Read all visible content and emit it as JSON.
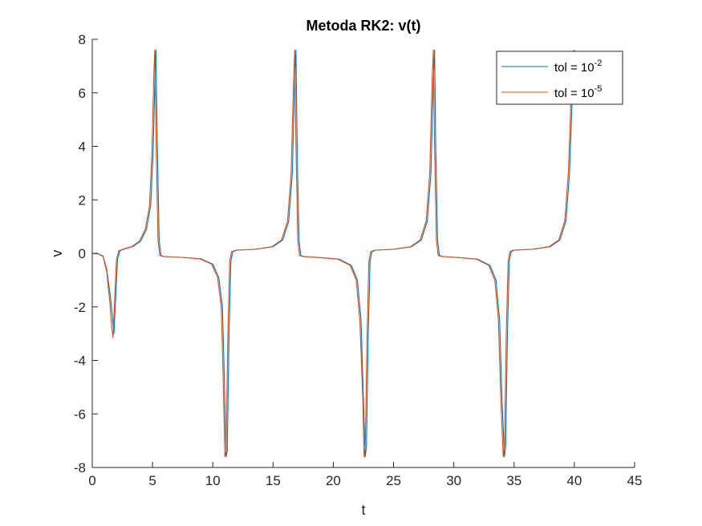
{
  "chart_data": {
    "type": "line",
    "title": "Metoda RK2: v(t)",
    "xlabel": "t",
    "ylabel": "v",
    "xlim": [
      0,
      45
    ],
    "ylim": [
      -8,
      8
    ],
    "xticks": [
      0,
      5,
      10,
      15,
      20,
      25,
      30,
      35,
      40,
      45
    ],
    "yticks": [
      -8,
      -6,
      -4,
      -2,
      0,
      2,
      4,
      6,
      8
    ],
    "grid": false,
    "legend_position": "top-right",
    "series": [
      {
        "name": "tol = 10^-2",
        "legend_base": "tol = 10",
        "legend_exp": "-2",
        "color": "#0072BD",
        "points": [
          [
            0,
            0
          ],
          [
            0.5,
            -0.01
          ],
          [
            0.9,
            -0.1
          ],
          [
            1.2,
            -0.6
          ],
          [
            1.5,
            -1.6
          ],
          [
            1.7,
            -2.5
          ],
          [
            1.8,
            -3.0
          ],
          [
            1.95,
            -1.6
          ],
          [
            2.1,
            -0.2
          ],
          [
            2.3,
            0.1
          ],
          [
            2.8,
            0.18
          ],
          [
            3.4,
            0.26
          ],
          [
            4.0,
            0.45
          ],
          [
            4.5,
            0.9
          ],
          [
            4.85,
            1.8
          ],
          [
            5.05,
            3.8
          ],
          [
            5.2,
            6.6
          ],
          [
            5.28,
            7.6
          ],
          [
            5.4,
            4.0
          ],
          [
            5.55,
            0.5
          ],
          [
            5.7,
            -0.08
          ],
          [
            6.0,
            -0.12
          ],
          [
            7.5,
            -0.15
          ],
          [
            9.0,
            -0.2
          ],
          [
            10.0,
            -0.4
          ],
          [
            10.5,
            -0.9
          ],
          [
            10.8,
            -2.0
          ],
          [
            10.95,
            -4.5
          ],
          [
            11.1,
            -7.6
          ],
          [
            11.2,
            -7.4
          ],
          [
            11.35,
            -3.0
          ],
          [
            11.5,
            -0.3
          ],
          [
            11.65,
            0.06
          ],
          [
            12.0,
            0.12
          ],
          [
            13.5,
            0.15
          ],
          [
            15.0,
            0.25
          ],
          [
            15.8,
            0.5
          ],
          [
            16.3,
            1.2
          ],
          [
            16.6,
            3.0
          ],
          [
            16.8,
            6.5
          ],
          [
            16.9,
            7.6
          ],
          [
            17.0,
            4.0
          ],
          [
            17.15,
            0.5
          ],
          [
            17.3,
            -0.08
          ],
          [
            17.6,
            -0.12
          ],
          [
            19.0,
            -0.16
          ],
          [
            20.5,
            -0.22
          ],
          [
            21.5,
            -0.45
          ],
          [
            22.0,
            -1.0
          ],
          [
            22.3,
            -2.5
          ],
          [
            22.5,
            -5.5
          ],
          [
            22.65,
            -7.6
          ],
          [
            22.75,
            -7.2
          ],
          [
            22.9,
            -3.0
          ],
          [
            23.05,
            -0.3
          ],
          [
            23.2,
            0.06
          ],
          [
            23.5,
            0.12
          ],
          [
            25.0,
            0.15
          ],
          [
            26.5,
            0.25
          ],
          [
            27.3,
            0.5
          ],
          [
            27.8,
            1.2
          ],
          [
            28.1,
            3.0
          ],
          [
            28.3,
            6.5
          ],
          [
            28.4,
            7.6
          ],
          [
            28.5,
            4.0
          ],
          [
            28.65,
            0.5
          ],
          [
            28.8,
            -0.08
          ],
          [
            29.1,
            -0.12
          ],
          [
            30.5,
            -0.16
          ],
          [
            32.0,
            -0.22
          ],
          [
            33.0,
            -0.45
          ],
          [
            33.5,
            -1.0
          ],
          [
            33.8,
            -2.5
          ],
          [
            34.0,
            -5.5
          ],
          [
            34.2,
            -7.6
          ],
          [
            34.3,
            -7.2
          ],
          [
            34.45,
            -3.0
          ],
          [
            34.6,
            -0.3
          ],
          [
            34.75,
            0.06
          ],
          [
            35.0,
            0.12
          ],
          [
            36.5,
            0.15
          ],
          [
            38.0,
            0.25
          ],
          [
            38.8,
            0.5
          ],
          [
            39.3,
            1.2
          ],
          [
            39.6,
            3.0
          ],
          [
            39.8,
            5.5
          ],
          [
            40.0,
            7.6
          ]
        ]
      },
      {
        "name": "tol = 10^-5",
        "legend_base": "tol = 10",
        "legend_exp": "-5",
        "color": "#D95319",
        "points": [
          [
            0,
            0
          ],
          [
            0.5,
            -0.02
          ],
          [
            0.9,
            -0.12
          ],
          [
            1.2,
            -0.7
          ],
          [
            1.45,
            -1.8
          ],
          [
            1.6,
            -2.7
          ],
          [
            1.72,
            -3.15
          ],
          [
            1.85,
            -1.8
          ],
          [
            2.0,
            -0.25
          ],
          [
            2.2,
            0.1
          ],
          [
            2.7,
            0.18
          ],
          [
            3.3,
            0.26
          ],
          [
            3.9,
            0.45
          ],
          [
            4.4,
            0.9
          ],
          [
            4.75,
            1.8
          ],
          [
            4.95,
            3.8
          ],
          [
            5.1,
            6.6
          ],
          [
            5.18,
            7.6
          ],
          [
            5.3,
            4.0
          ],
          [
            5.45,
            0.5
          ],
          [
            5.6,
            -0.08
          ],
          [
            5.9,
            -0.12
          ],
          [
            7.4,
            -0.15
          ],
          [
            8.9,
            -0.2
          ],
          [
            9.9,
            -0.4
          ],
          [
            10.4,
            -0.9
          ],
          [
            10.7,
            -2.0
          ],
          [
            10.85,
            -4.5
          ],
          [
            11.0,
            -7.6
          ],
          [
            11.1,
            -7.4
          ],
          [
            11.25,
            -3.0
          ],
          [
            11.4,
            -0.3
          ],
          [
            11.55,
            0.06
          ],
          [
            11.9,
            0.12
          ],
          [
            13.4,
            0.15
          ],
          [
            14.9,
            0.25
          ],
          [
            15.7,
            0.5
          ],
          [
            16.2,
            1.2
          ],
          [
            16.5,
            3.0
          ],
          [
            16.7,
            6.5
          ],
          [
            16.8,
            7.6
          ],
          [
            16.9,
            4.0
          ],
          [
            17.05,
            0.5
          ],
          [
            17.2,
            -0.08
          ],
          [
            17.5,
            -0.12
          ],
          [
            18.9,
            -0.16
          ],
          [
            20.4,
            -0.22
          ],
          [
            21.4,
            -0.45
          ],
          [
            21.9,
            -1.0
          ],
          [
            22.2,
            -2.5
          ],
          [
            22.45,
            -5.5
          ],
          [
            22.55,
            -7.6
          ],
          [
            22.65,
            -7.2
          ],
          [
            22.8,
            -3.0
          ],
          [
            22.95,
            -0.3
          ],
          [
            23.1,
            0.06
          ],
          [
            23.4,
            0.12
          ],
          [
            24.9,
            0.15
          ],
          [
            26.4,
            0.25
          ],
          [
            27.2,
            0.5
          ],
          [
            27.7,
            1.2
          ],
          [
            28.0,
            3.0
          ],
          [
            28.2,
            6.5
          ],
          [
            28.3,
            7.6
          ],
          [
            28.4,
            4.0
          ],
          [
            28.55,
            0.5
          ],
          [
            28.7,
            -0.08
          ],
          [
            29.0,
            -0.12
          ],
          [
            30.4,
            -0.16
          ],
          [
            31.9,
            -0.22
          ],
          [
            32.9,
            -0.45
          ],
          [
            33.4,
            -1.0
          ],
          [
            33.7,
            -2.5
          ],
          [
            33.9,
            -5.5
          ],
          [
            34.1,
            -7.6
          ],
          [
            34.2,
            -7.2
          ],
          [
            34.35,
            -3.0
          ],
          [
            34.5,
            -0.3
          ],
          [
            34.65,
            0.06
          ],
          [
            34.9,
            0.12
          ],
          [
            36.4,
            0.15
          ],
          [
            37.9,
            0.25
          ],
          [
            38.7,
            0.5
          ],
          [
            39.2,
            1.2
          ],
          [
            39.5,
            3.0
          ],
          [
            39.7,
            5.5
          ],
          [
            39.95,
            7.6
          ]
        ]
      }
    ]
  }
}
